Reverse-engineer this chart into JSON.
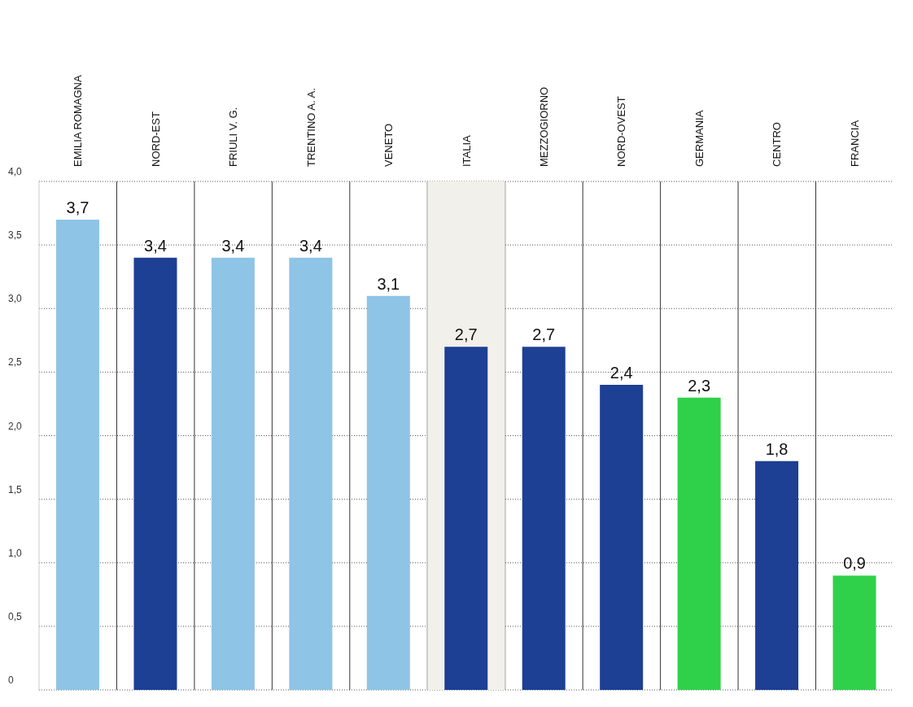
{
  "chart_data": {
    "type": "bar",
    "categories": [
      "EMILIA ROMAGNA",
      "NORD-EST",
      "FRIULI V. G.",
      "TRENTINO A. A.",
      "VENETO",
      "ITALIA",
      "MEZZOGIORNO",
      "NORD-OVEST",
      "GERMANIA",
      "CENTRO",
      "FRANCIA"
    ],
    "values": [
      3.7,
      3.4,
      3.4,
      3.4,
      3.1,
      2.7,
      2.7,
      2.4,
      2.3,
      1.8,
      0.9
    ],
    "colors": [
      "#8ec4e6",
      "#1d3f94",
      "#8ec4e6",
      "#8ec4e6",
      "#8ec4e6",
      "#1d3f94",
      "#1d3f94",
      "#1d3f94",
      "#2fd14a",
      "#1d3f94",
      "#2fd14a"
    ],
    "value_labels": [
      "3,7",
      "3,4",
      "3,4",
      "3,4",
      "3,1",
      "2,7",
      "2,7",
      "2,4",
      "2,3",
      "1,8",
      "0,9"
    ],
    "ylim": [
      0,
      4
    ],
    "yticks": [
      {
        "value": 0,
        "label": "0"
      },
      {
        "value": 0.5,
        "label": "0,5"
      },
      {
        "value": 1,
        "label": "1,0"
      },
      {
        "value": 1.5,
        "label": "1,5"
      },
      {
        "value": 2,
        "label": "2,0"
      },
      {
        "value": 2.5,
        "label": "2,5"
      },
      {
        "value": 3,
        "label": "3,0"
      },
      {
        "value": 3.5,
        "label": "3,5"
      },
      {
        "value": 4,
        "label": "4,0"
      }
    ],
    "bands": [
      {
        "axis": "x",
        "from": "ITALIA",
        "to": "ITALIA",
        "color": "#f2f0ea"
      }
    ],
    "grid": true
  }
}
